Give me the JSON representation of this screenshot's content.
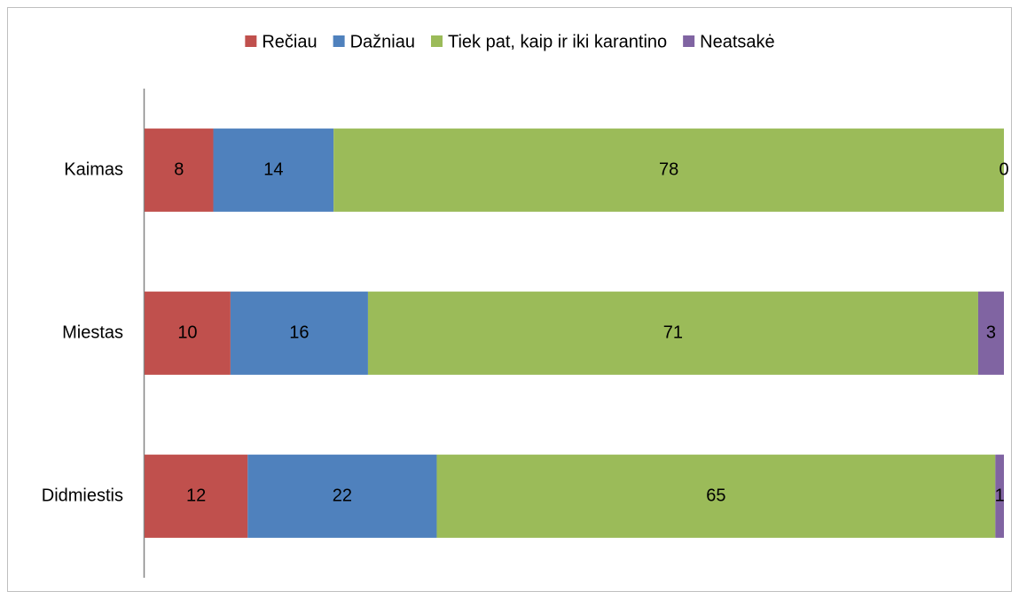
{
  "chart_data": {
    "type": "stacked-bar-horizontal",
    "categories": [
      "Kaimas",
      "Miestas",
      "Didmiestis"
    ],
    "series": [
      {
        "name": "Rečiau",
        "color": "#c0504d",
        "values": [
          8,
          10,
          12
        ]
      },
      {
        "name": "Dažniau",
        "color": "#4f81bd",
        "values": [
          14,
          16,
          22
        ]
      },
      {
        "name": "Tiek pat, kaip ir iki karantino",
        "color": "#9bbb59",
        "values": [
          78,
          71,
          65
        ]
      },
      {
        "name": "Neatsakė",
        "color": "#8064a2",
        "values": [
          0,
          3,
          1
        ]
      }
    ],
    "xlim": [
      0,
      100
    ],
    "legend": "top"
  }
}
